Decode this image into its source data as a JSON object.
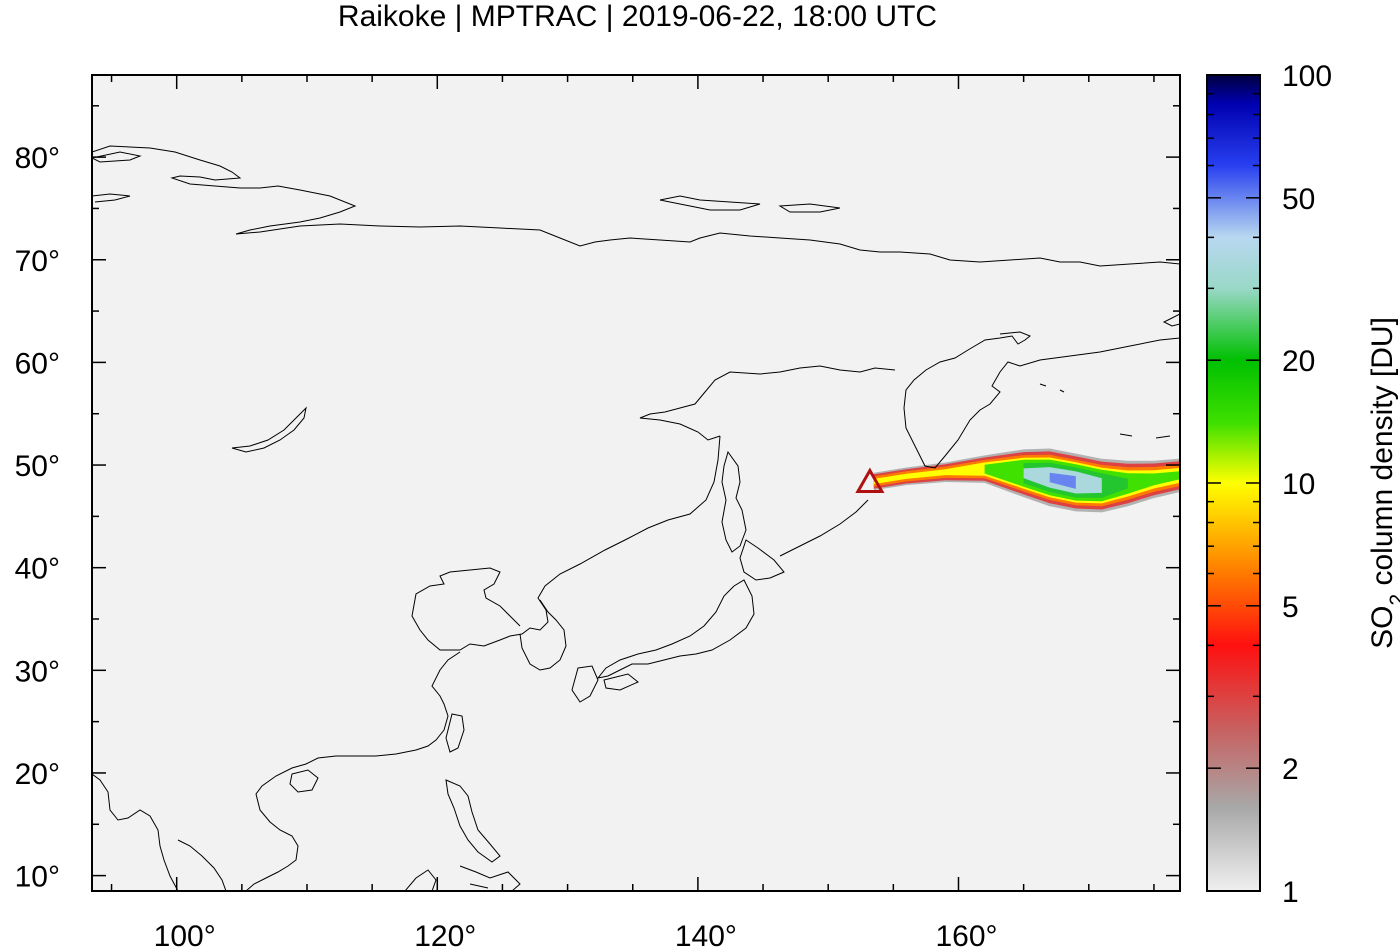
{
  "title": "Raikoke | MPTRAC | 2019-06-22, 18:00 UTC",
  "map": {
    "type": "heatmap",
    "lon_range": [
      93.5,
      177.0
    ],
    "lat_range": [
      8.5,
      88.0
    ],
    "background_color": "#f2f2f2",
    "lon_ticks": [
      {
        "value": 100,
        "label": "100°"
      },
      {
        "value": 120,
        "label": "120°"
      },
      {
        "value": 140,
        "label": "140°"
      },
      {
        "value": 160,
        "label": "160°"
      }
    ],
    "lat_ticks": [
      {
        "value": 10,
        "label": "10°"
      },
      {
        "value": 20,
        "label": "20°"
      },
      {
        "value": 30,
        "label": "30°"
      },
      {
        "value": 40,
        "label": "40°"
      },
      {
        "value": 50,
        "label": "50°"
      },
      {
        "value": 60,
        "label": "60°"
      },
      {
        "value": 70,
        "label": "70°"
      },
      {
        "value": 80,
        "label": "80°"
      }
    ],
    "volcano": {
      "name": "Raikoke",
      "lon": 153.2,
      "lat": 48.3,
      "marker": "triangle-icon",
      "color": "#b01010"
    },
    "plume_centerline": [
      {
        "lon": 153.5,
        "lat": 48.4,
        "halfwidth": 0.9,
        "peak_du": 12
      },
      {
        "lon": 156.0,
        "lat": 48.9,
        "halfwidth": 0.9,
        "peak_du": 12
      },
      {
        "lon": 159.0,
        "lat": 49.3,
        "halfwidth": 1.0,
        "peak_du": 12
      },
      {
        "lon": 162.0,
        "lat": 49.6,
        "halfwidth": 1.4,
        "peak_du": 18
      },
      {
        "lon": 165.0,
        "lat": 49.2,
        "halfwidth": 2.4,
        "peak_du": 40
      },
      {
        "lon": 167.0,
        "lat": 48.8,
        "halfwidth": 2.9,
        "peak_du": 55
      },
      {
        "lon": 169.0,
        "lat": 48.3,
        "halfwidth": 2.9,
        "peak_du": 60
      },
      {
        "lon": 171.0,
        "lat": 48.0,
        "halfwidth": 2.7,
        "peak_du": 45
      },
      {
        "lon": 173.0,
        "lat": 48.2,
        "halfwidth": 2.3,
        "peak_du": 25
      },
      {
        "lon": 175.0,
        "lat": 48.6,
        "halfwidth": 1.9,
        "peak_du": 18
      },
      {
        "lon": 177.0,
        "lat": 49.0,
        "halfwidth": 1.7,
        "peak_du": 16
      }
    ]
  },
  "colorbar": {
    "label_main": "SO",
    "label_sub": "2",
    "label_rest": " column density [DU]",
    "scale": "log",
    "range": [
      1,
      100
    ],
    "ticks": [
      {
        "value": 1,
        "label": "1"
      },
      {
        "value": 2,
        "label": "2"
      },
      {
        "value": 5,
        "label": "5"
      },
      {
        "value": 10,
        "label": "10"
      },
      {
        "value": 20,
        "label": "20"
      },
      {
        "value": 50,
        "label": "50"
      },
      {
        "value": 100,
        "label": "100"
      }
    ],
    "color_stops": [
      {
        "value": 1,
        "color": "#f0f0f0"
      },
      {
        "value": 1.6,
        "color": "#a8a8a8"
      },
      {
        "value": 2.5,
        "color": "#c86060"
      },
      {
        "value": 4,
        "color": "#ff1010"
      },
      {
        "value": 6,
        "color": "#ff7a00"
      },
      {
        "value": 10,
        "color": "#ffff00"
      },
      {
        "value": 14,
        "color": "#40e000"
      },
      {
        "value": 20,
        "color": "#00c000"
      },
      {
        "value": 30,
        "color": "#9ad8c8"
      },
      {
        "value": 40,
        "color": "#b8d8f0"
      },
      {
        "value": 60,
        "color": "#2840f0"
      },
      {
        "value": 85,
        "color": "#0000b0"
      },
      {
        "value": 100,
        "color": "#000040"
      }
    ]
  }
}
